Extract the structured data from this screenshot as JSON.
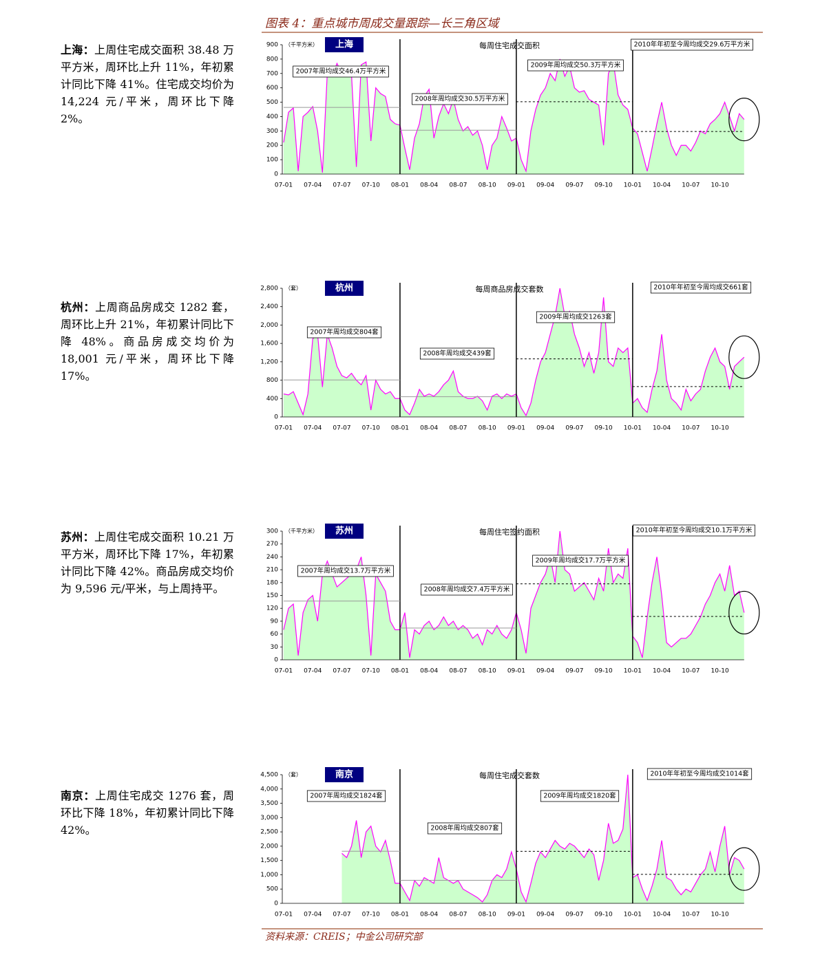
{
  "header": {
    "title": "图表 4：重点城市周成交量跟踪—长三角区域"
  },
  "source": "资料来源：CREIS；中金公司研究部",
  "paragraphs": [
    {
      "lead": "上海：",
      "text": "上周住宅成交面积 38.48 万平方米，周环比上升 11%，年初累计同比下降 41%。住宅成交均价为 14,224 元/平米，周环比下降 2%。"
    },
    {
      "lead": "杭州：",
      "text": "上周商品房成交 1282 套，周环比上升 21%，年初累计同比下降 48%。商品房成交均价为 18,001 元/平米，周环比下降 17%。"
    },
    {
      "lead": "苏州：",
      "text": "上周住宅成交面积 10.21 万平方米，周环比下降 17%，年初累计同比下降 42%。商品房成交均价为 9,596 元/平米，与上周持平。"
    },
    {
      "lead": "南京：",
      "text": "上周住宅成交 1276 套，周环比下降 18%，年初累计同比下降 42%。"
    }
  ],
  "chart_data": [
    {
      "type": "area",
      "city": "上海",
      "unit": "（千平方米）",
      "title": "每周住宅成交面积",
      "color": "#ff00ff",
      "fill": "#ccffcc",
      "categories": [
        "07-01",
        null,
        null,
        null,
        null,
        null,
        "07-04",
        null,
        null,
        null,
        null,
        null,
        "07-07",
        null,
        null,
        null,
        null,
        null,
        "07-10",
        null,
        null,
        null,
        null,
        null,
        "08-01",
        null,
        null,
        null,
        null,
        null,
        "08-04",
        null,
        null,
        null,
        null,
        null,
        "08-07",
        null,
        null,
        null,
        null,
        null,
        "08-10",
        null,
        null,
        null,
        null,
        null,
        "09-01",
        null,
        null,
        null,
        null,
        null,
        "09-04",
        null,
        null,
        null,
        null,
        null,
        "09-07",
        null,
        null,
        null,
        null,
        null,
        "09-10",
        null,
        null,
        null,
        null,
        null,
        "10-01",
        null,
        null,
        null,
        null,
        null,
        "10-04",
        null,
        null,
        null,
        null,
        null,
        "10-07",
        null,
        null,
        null,
        null,
        null,
        "10-10",
        null,
        null,
        null,
        null,
        null
      ],
      "values": [
        220,
        430,
        460,
        20,
        400,
        430,
        470,
        300,
        10,
        700,
        680,
        770,
        700,
        720,
        690,
        50,
        760,
        780,
        230,
        600,
        560,
        540,
        380,
        350,
        340,
        180,
        30,
        250,
        350,
        540,
        590,
        250,
        400,
        490,
        420,
        520,
        380,
        300,
        330,
        270,
        300,
        200,
        30,
        200,
        250,
        400,
        320,
        230,
        250,
        100,
        20,
        300,
        450,
        550,
        600,
        700,
        650,
        800,
        680,
        750,
        600,
        570,
        580,
        520,
        500,
        480,
        200,
        700,
        780,
        550,
        480,
        450,
        320,
        280,
        150,
        20,
        180,
        350,
        500,
        320,
        200,
        130,
        200,
        200,
        160,
        220,
        300,
        280,
        350,
        380,
        420,
        500,
        400,
        300,
        420,
        380
      ],
      "ylim": [
        0,
        900
      ],
      "yticks": [
        0,
        100,
        200,
        300,
        400,
        500,
        600,
        700,
        800,
        900
      ],
      "averages": [
        {
          "label": "2007年周均成交46.4万平方米",
          "value": 464
        },
        {
          "label": "2008年周均成交30.5万平方米",
          "value": 305
        },
        {
          "label": "2009年周均成交50.3万平方米",
          "value": 503
        },
        {
          "label": "2010年年初至今周均成交29.6万平方米",
          "value": 296
        }
      ]
    },
    {
      "type": "area",
      "city": "杭州",
      "unit": "（套）",
      "title": "每周商品房成交套数",
      "color": "#ff00ff",
      "fill": "#ccffcc",
      "categories": [
        "07-01",
        null,
        null,
        null,
        null,
        null,
        "07-04",
        null,
        null,
        null,
        null,
        null,
        "07-07",
        null,
        null,
        null,
        null,
        null,
        "07-10",
        null,
        null,
        null,
        null,
        null,
        "08-01",
        null,
        null,
        null,
        null,
        null,
        "08-04",
        null,
        null,
        null,
        null,
        null,
        "08-07",
        null,
        null,
        null,
        null,
        null,
        "08-10",
        null,
        null,
        null,
        null,
        null,
        "09-01",
        null,
        null,
        null,
        null,
        null,
        "09-04",
        null,
        null,
        null,
        null,
        null,
        "09-07",
        null,
        null,
        null,
        null,
        null,
        "09-10",
        null,
        null,
        null,
        null,
        null,
        "10-01",
        null,
        null,
        null,
        null,
        null,
        "10-04",
        null,
        null,
        null,
        null,
        null,
        "10-07",
        null,
        null,
        null,
        null,
        null,
        "10-10",
        null,
        null,
        null,
        null,
        null
      ],
      "values": [
        500,
        480,
        550,
        300,
        50,
        500,
        1700,
        1800,
        650,
        1800,
        1500,
        1100,
        900,
        850,
        950,
        800,
        700,
        900,
        150,
        800,
        600,
        500,
        550,
        400,
        400,
        150,
        50,
        300,
        600,
        450,
        500,
        450,
        550,
        700,
        800,
        1000,
        550,
        450,
        400,
        400,
        450,
        350,
        150,
        450,
        500,
        400,
        500,
        450,
        500,
        200,
        30,
        300,
        800,
        1200,
        1400,
        1800,
        2200,
        2800,
        2200,
        2300,
        1800,
        1500,
        1100,
        1400,
        950,
        1400,
        2600,
        1200,
        1100,
        1500,
        1400,
        1500,
        300,
        400,
        200,
        100,
        600,
        1000,
        1800,
        800,
        400,
        300,
        150,
        600,
        350,
        500,
        600,
        1000,
        1300,
        1500,
        1200,
        1100,
        600,
        1100,
        1200,
        1300
      ],
      "ylim": [
        0,
        2800
      ],
      "yticks": [
        0,
        400,
        800,
        {
          "value": 1200,
          "label": "1,200"
        },
        {
          "value": 1600,
          "label": "1,600"
        },
        {
          "value": 2000,
          "label": "2,000"
        },
        {
          "value": 2400,
          "label": "2,400"
        },
        {
          "value": 2800,
          "label": "2,800"
        }
      ],
      "averages": [
        {
          "label": "2007年周均成交804套",
          "value": 804
        },
        {
          "label": "2008年周均成交439套",
          "value": 439
        },
        {
          "label": "2009年周均成交1263套",
          "value": 1263
        },
        {
          "label": "2010年年初至今周均成交661套",
          "value": 661
        }
      ]
    },
    {
      "type": "area",
      "city": "苏州",
      "unit": "（千平方米）",
      "title": "每周住宅签约面积",
      "color": "#ff00ff",
      "fill": "#ccffcc",
      "categories": [
        "07-01",
        null,
        null,
        null,
        null,
        null,
        "07-04",
        null,
        null,
        null,
        null,
        null,
        "07-07",
        null,
        null,
        null,
        null,
        null,
        "07-10",
        null,
        null,
        null,
        null,
        null,
        "08-01",
        null,
        null,
        null,
        null,
        null,
        "08-04",
        null,
        null,
        null,
        null,
        null,
        "08-07",
        null,
        null,
        null,
        null,
        null,
        "08-10",
        null,
        null,
        null,
        null,
        null,
        "09-01",
        null,
        null,
        null,
        null,
        null,
        "09-04",
        null,
        null,
        null,
        null,
        null,
        "09-07",
        null,
        null,
        null,
        null,
        null,
        "09-10",
        null,
        null,
        null,
        null,
        null,
        "10-01",
        null,
        null,
        null,
        null,
        null,
        "10-04",
        null,
        null,
        null,
        null,
        null,
        "10-07",
        null,
        null,
        null,
        null,
        null,
        "10-10",
        null,
        null,
        null,
        null,
        null
      ],
      "values": [
        70,
        120,
        130,
        10,
        110,
        140,
        150,
        90,
        200,
        230,
        200,
        170,
        180,
        190,
        200,
        210,
        240,
        150,
        10,
        200,
        180,
        160,
        90,
        70,
        70,
        110,
        5,
        70,
        60,
        80,
        90,
        70,
        80,
        100,
        80,
        90,
        70,
        80,
        70,
        50,
        60,
        35,
        70,
        60,
        80,
        60,
        50,
        70,
        110,
        70,
        15,
        120,
        150,
        180,
        200,
        240,
        180,
        300,
        210,
        200,
        160,
        170,
        180,
        160,
        140,
        190,
        160,
        260,
        180,
        200,
        190,
        260,
        55,
        40,
        5,
        100,
        180,
        240,
        150,
        40,
        30,
        40,
        50,
        50,
        60,
        80,
        100,
        130,
        150,
        180,
        200,
        160,
        220,
        150,
        160,
        110
      ],
      "ylim": [
        0,
        300
      ],
      "yticks": [
        0,
        30,
        60,
        90,
        120,
        150,
        180,
        210,
        240,
        270,
        300
      ],
      "averages": [
        {
          "label": "2007年周均成交13.7万平方米",
          "value": 137
        },
        {
          "label": "2008年周均成交7.4万平方米",
          "value": 74
        },
        {
          "label": "2009年周均成交17.7万平方米",
          "value": 177
        },
        {
          "label": "2010年年初至今周均成交10.1万平方米",
          "value": 101
        }
      ]
    },
    {
      "type": "area",
      "city": "南京",
      "unit": "（套）",
      "title": "每周住宅成交套数",
      "color": "#ff00ff",
      "fill": "#ccffcc",
      "categories": [
        "07-01",
        null,
        null,
        null,
        null,
        null,
        "07-04",
        null,
        null,
        null,
        null,
        null,
        "07-07",
        null,
        null,
        null,
        null,
        null,
        "07-10",
        null,
        null,
        null,
        null,
        null,
        "08-01",
        null,
        null,
        null,
        null,
        null,
        "08-04",
        null,
        null,
        null,
        null,
        null,
        "08-07",
        null,
        null,
        null,
        null,
        null,
        "08-10",
        null,
        null,
        null,
        null,
        null,
        "09-01",
        null,
        null,
        null,
        null,
        null,
        "09-04",
        null,
        null,
        null,
        null,
        null,
        "09-07",
        null,
        null,
        null,
        null,
        null,
        "09-10",
        null,
        null,
        null,
        null,
        null,
        "10-01",
        null,
        null,
        null,
        null,
        null,
        "10-04",
        null,
        null,
        null,
        null,
        null,
        "10-07",
        null,
        null,
        null,
        null,
        null,
        "10-10",
        null,
        null,
        null,
        null,
        null
      ],
      "values": [
        null,
        null,
        null,
        null,
        null,
        null,
        null,
        null,
        null,
        null,
        null,
        null,
        1750,
        1600,
        2000,
        2900,
        1600,
        2500,
        2700,
        2000,
        1800,
        2200,
        1500,
        700,
        700,
        400,
        100,
        800,
        600,
        900,
        800,
        700,
        1600,
        900,
        800,
        700,
        800,
        500,
        400,
        300,
        200,
        50,
        300,
        800,
        1000,
        900,
        1200,
        1800,
        1200,
        400,
        50,
        700,
        1400,
        1800,
        1600,
        1900,
        2200,
        2000,
        1900,
        2100,
        2000,
        1800,
        1600,
        1900,
        1700,
        800,
        1500,
        2800,
        2100,
        2200,
        2600,
        4500,
        900,
        1000,
        500,
        100,
        600,
        1200,
        2200,
        900,
        800,
        500,
        300,
        500,
        400,
        700,
        1000,
        1200,
        1800,
        1100,
        2000,
        2700,
        1000,
        1600,
        1500,
        1200
      ],
      "ylim": [
        0,
        4500
      ],
      "yticks": [
        0,
        500,
        {
          "value": 1000,
          "label": "1,000"
        },
        {
          "value": 1500,
          "label": "1,500"
        },
        {
          "value": 2000,
          "label": "2,000"
        },
        {
          "value": 2500,
          "label": "2,500"
        },
        {
          "value": 3000,
          "label": "3,000"
        },
        {
          "value": 3500,
          "label": "3,500"
        },
        {
          "value": 4000,
          "label": "4,000"
        },
        {
          "value": 4500,
          "label": "4,500"
        }
      ],
      "averages": [
        {
          "label": "2007年周均成交1824套",
          "value": 1824
        },
        {
          "label": "2008年周均成交807套",
          "value": 807
        },
        {
          "label": "2009年周均成交1820套",
          "value": 1820
        },
        {
          "label": "2010年年初至今周均成交1014套",
          "value": 1014
        }
      ]
    }
  ]
}
